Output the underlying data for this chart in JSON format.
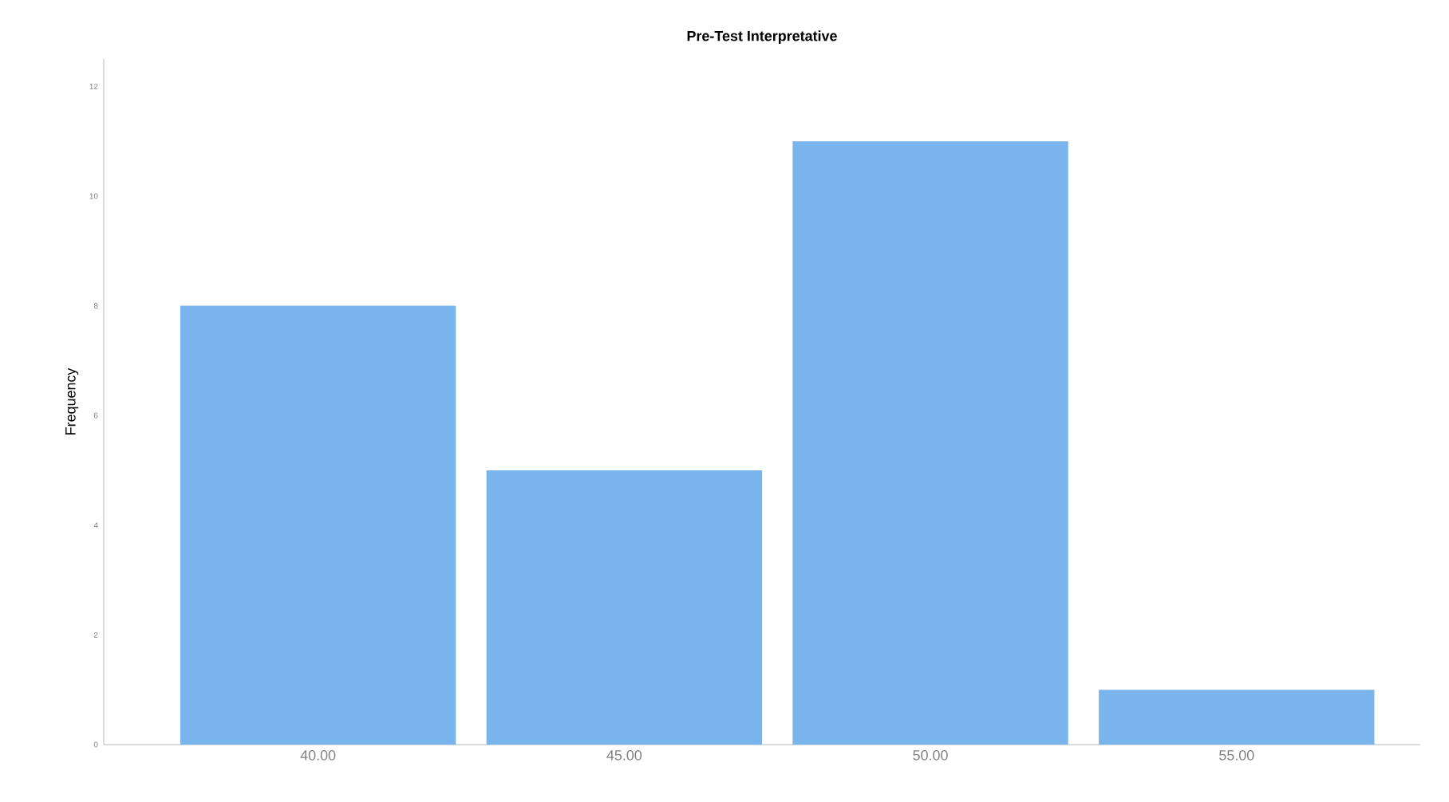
{
  "chart_data": {
    "type": "bar",
    "title": "Pre-Test Interpretative",
    "ylabel": "Frequency",
    "categories": [
      "40.00",
      "45.00",
      "50.00",
      "55.00"
    ],
    "values": [
      8,
      5,
      11,
      1
    ],
    "color": "#7ab4ec",
    "ylim": [
      0,
      12.5
    ],
    "yticks": [
      0,
      2,
      4,
      6,
      8,
      10,
      12
    ],
    "grid": false
  }
}
